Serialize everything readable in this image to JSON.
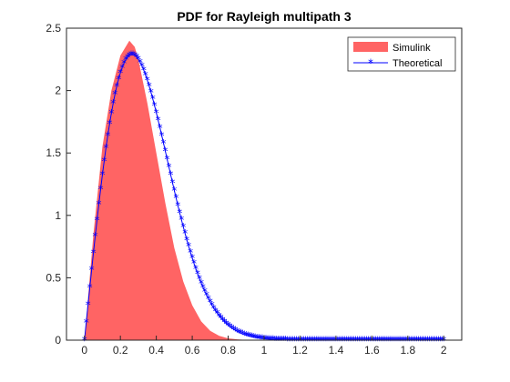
{
  "chart_data": {
    "type": "area",
    "title": "PDF for Rayleigh multipath 3",
    "xlabel": "",
    "ylabel": "",
    "xlim": [
      -0.1,
      2.1
    ],
    "ylim": [
      0,
      2.5
    ],
    "x_ticks": [
      0,
      0.2,
      0.4,
      0.6,
      0.8,
      1,
      1.2,
      1.4,
      1.6,
      1.8,
      2
    ],
    "x_tick_labels": [
      "0",
      "0.2",
      "0.4",
      "0.6",
      "0.8",
      "1",
      "1.2",
      "1.4",
      "1.6",
      "1.8",
      "2"
    ],
    "y_ticks": [
      0,
      0.5,
      1,
      1.5,
      2,
      2.5
    ],
    "y_tick_labels": [
      "0",
      "0.5",
      "1",
      "1.5",
      "2",
      "2.5"
    ],
    "grid": false,
    "legend_position": "top-right",
    "series": [
      {
        "name": "Simulink",
        "kind": "histogram",
        "color": "#ff6464",
        "x": [
          0,
          0.05,
          0.1,
          0.15,
          0.2,
          0.25,
          0.28,
          0.3,
          0.35,
          0.4,
          0.45,
          0.5,
          0.55,
          0.6,
          0.65,
          0.7,
          0.75,
          0.8,
          0.85,
          0.9,
          1.0,
          1.1
        ],
        "values": [
          0,
          0.85,
          1.55,
          2.0,
          2.28,
          2.4,
          2.35,
          2.25,
          1.9,
          1.5,
          1.1,
          0.74,
          0.47,
          0.28,
          0.15,
          0.075,
          0.035,
          0.015,
          0.006,
          0.002,
          0,
          0
        ]
      },
      {
        "name": "Theoretical",
        "kind": "line",
        "color": "#0000ff",
        "marker": "asterisk",
        "sigma": 0.265,
        "x_range": [
          0,
          2
        ],
        "marker_step": 0.01
      }
    ]
  }
}
